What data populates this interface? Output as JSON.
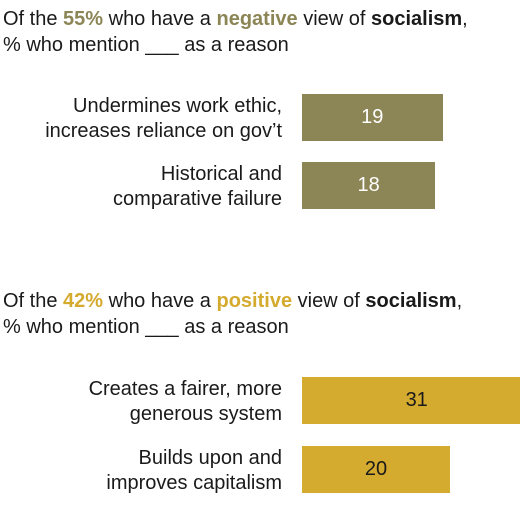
{
  "colors": {
    "negative": "#8c8556",
    "positive": "#d4aa2f",
    "text": "#1a1a1a"
  },
  "chart_data": [
    {
      "type": "bar",
      "orientation": "horizontal",
      "title_parts": {
        "pre": "Of the ",
        "pct": "55%",
        "mid": " who have a ",
        "view": "negative",
        "mid2": " view of ",
        "term": "socialism",
        "post": ","
      },
      "subtitle": "% who mention ___ as a reason",
      "categories": [
        "Undermines work ethic, increases reliance on gov’t",
        "Historical and comparative failure"
      ],
      "category_lines": [
        [
          "Undermines work ethic,",
          "increases reliance on gov’t"
        ],
        [
          "Historical and",
          "comparative failure"
        ]
      ],
      "values": [
        19,
        18
      ],
      "value_labels": [
        "19",
        "18"
      ],
      "color": "#8c8556"
    },
    {
      "type": "bar",
      "orientation": "horizontal",
      "title_parts": {
        "pre": "Of the ",
        "pct": "42%",
        "mid": " who have a ",
        "view": "positive",
        "mid2": " view of ",
        "term": "socialism",
        "post": ","
      },
      "subtitle": "% who mention ___ as a reason",
      "categories": [
        "Creates a fairer, more generous system",
        "Builds upon and improves capitalism"
      ],
      "category_lines": [
        [
          "Creates a fairer, more",
          "generous system"
        ],
        [
          "Builds upon and",
          "improves capitalism"
        ]
      ],
      "values": [
        31,
        20
      ],
      "value_labels": [
        "31",
        "20"
      ],
      "color": "#d4aa2f"
    }
  ]
}
